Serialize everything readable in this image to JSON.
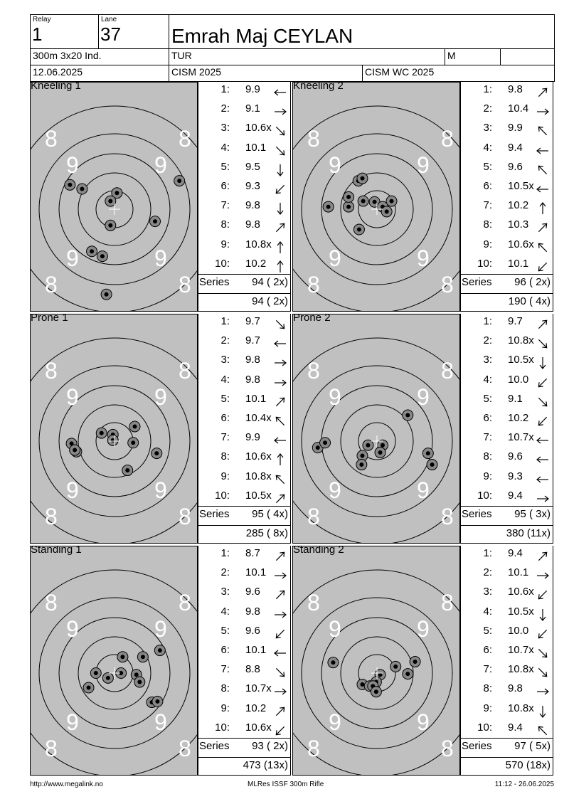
{
  "header": {
    "relay_label": "Relay",
    "relay": "1",
    "lane_label": "Lane",
    "lane": "37",
    "name": "Emrah Maj CEYLAN",
    "event": "300m 3x20 Ind.",
    "nation": "TUR",
    "gender": "M",
    "date": "12.06.2025",
    "competition": "CISM 2025",
    "match": "CISM WC 2025"
  },
  "series_label": "Series",
  "ring_label_8": "8",
  "ring_label_9": "9",
  "series": [
    {
      "title": "Kneeling 1",
      "shots": [
        {
          "n": "1:",
          "v": "9.9",
          "dir": "w"
        },
        {
          "n": "2:",
          "v": "9.1",
          "dir": "e"
        },
        {
          "n": "3:",
          "v": "10.6x",
          "dir": "se"
        },
        {
          "n": "4:",
          "v": "10.1",
          "dir": "se"
        },
        {
          "n": "5:",
          "v": "9.5",
          "dir": "s"
        },
        {
          "n": "6:",
          "v": "9.3",
          "dir": "sw"
        },
        {
          "n": "7:",
          "v": "9.8",
          "dir": "s"
        },
        {
          "n": "8:",
          "v": "9.8",
          "dir": "ne"
        },
        {
          "n": "9:",
          "v": "10.8x",
          "dir": "n"
        },
        {
          "n": "10:",
          "v": "10.2",
          "dir": "n"
        }
      ],
      "series_total": "94 ( 2x)",
      "running_total": "94 ( 2x)",
      "impacts": [
        [
          -2,
          14.5
        ],
        [
          8,
          -3.5
        ],
        [
          -0.5,
          2
        ],
        [
          -4,
          -2.5
        ],
        [
          5,
          1.5
        ],
        [
          -5.5,
          -3
        ],
        [
          -1,
          10.5
        ],
        [
          0.3,
          -2
        ],
        [
          -0.5,
          -1
        ],
        [
          -2.8,
          5.2
        ],
        [
          -1.5,
          5.8
        ]
      ]
    },
    {
      "title": "Kneeling 2",
      "shots": [
        {
          "n": "1:",
          "v": "9.8",
          "dir": "ne"
        },
        {
          "n": "2:",
          "v": "10.4",
          "dir": "e"
        },
        {
          "n": "3:",
          "v": "9.9",
          "dir": "nw"
        },
        {
          "n": "4:",
          "v": "9.4",
          "dir": "w"
        },
        {
          "n": "5:",
          "v": "9.6",
          "dir": "nw"
        },
        {
          "n": "6:",
          "v": "10.5x",
          "dir": "w"
        },
        {
          "n": "7:",
          "v": "10.2",
          "dir": "n"
        },
        {
          "n": "8:",
          "v": "10.3",
          "dir": "ne"
        },
        {
          "n": "9:",
          "v": "10.6x",
          "dir": "nw"
        },
        {
          "n": "10:",
          "v": "10.1",
          "dir": "sw"
        }
      ],
      "series_total": "96 ( 2x)",
      "running_total": "190 ( 4x)",
      "impacts": [
        [
          -2.3,
          -3.5
        ],
        [
          -1.8,
          -3.8
        ],
        [
          -3.5,
          -0.3
        ],
        [
          -3.5,
          -1.5
        ],
        [
          -1.7,
          -1
        ],
        [
          -0.3,
          -0.9
        ],
        [
          0.7,
          -0.3
        ],
        [
          1.2,
          0.3
        ],
        [
          1.8,
          -1
        ],
        [
          -2.2,
          2.5
        ],
        [
          -6,
          -0.3
        ]
      ]
    },
    {
      "title": "Prone 1",
      "shots": [
        {
          "n": "1:",
          "v": "9.7",
          "dir": "se"
        },
        {
          "n": "2:",
          "v": "9.7",
          "dir": "w"
        },
        {
          "n": "3:",
          "v": "9.8",
          "dir": "e"
        },
        {
          "n": "4:",
          "v": "9.8",
          "dir": "e"
        },
        {
          "n": "5:",
          "v": "10.1",
          "dir": "ne"
        },
        {
          "n": "6:",
          "v": "10.4x",
          "dir": "nw"
        },
        {
          "n": "7:",
          "v": "9.9",
          "dir": "w"
        },
        {
          "n": "8:",
          "v": "10.6x",
          "dir": "n"
        },
        {
          "n": "9:",
          "v": "10.8x",
          "dir": "nw"
        },
        {
          "n": "10:",
          "v": "10.5x",
          "dir": "ne"
        }
      ],
      "series_total": "95 ( 4x)",
      "running_total": "285 ( 8x)",
      "impacts": [
        [
          -1.6,
          -1
        ],
        [
          -0.2,
          -0.8
        ],
        [
          -0.2,
          -0.1
        ],
        [
          2.5,
          -1.8
        ],
        [
          2.3,
          0.2
        ],
        [
          -5.3,
          0.3
        ],
        [
          -4.7,
          1.3
        ],
        [
          -4.9,
          1.1
        ],
        [
          5.2,
          1.5
        ],
        [
          1.6,
          3.6
        ]
      ]
    },
    {
      "title": "Prone 2",
      "shots": [
        {
          "n": "1:",
          "v": "9.7",
          "dir": "ne"
        },
        {
          "n": "2:",
          "v": "10.8x",
          "dir": "se"
        },
        {
          "n": "3:",
          "v": "10.5x",
          "dir": "s"
        },
        {
          "n": "4:",
          "v": "10.0",
          "dir": "sw"
        },
        {
          "n": "5:",
          "v": "9.1",
          "dir": "se"
        },
        {
          "n": "6:",
          "v": "10.2",
          "dir": "sw"
        },
        {
          "n": "7:",
          "v": "10.7x",
          "dir": "w"
        },
        {
          "n": "8:",
          "v": "9.6",
          "dir": "w"
        },
        {
          "n": "9:",
          "v": "9.3",
          "dir": "w"
        },
        {
          "n": "10:",
          "v": "9.4",
          "dir": "e"
        }
      ],
      "series_total": "95 ( 3x)",
      "running_total": "380 (11x)",
      "impacts": [
        [
          3.8,
          -3.2
        ],
        [
          -1.1,
          0.5
        ],
        [
          0.7,
          0.5
        ],
        [
          0.4,
          1.4
        ],
        [
          -1.8,
          1.8
        ],
        [
          -1.9,
          2.9
        ],
        [
          -7.3,
          0.8
        ],
        [
          -6.4,
          0.2
        ],
        [
          6.3,
          1.5
        ],
        [
          6.8,
          2.9
        ]
      ]
    },
    {
      "title": "Standing 1",
      "shots": [
        {
          "n": "1:",
          "v": "8.7",
          "dir": "ne"
        },
        {
          "n": "2:",
          "v": "10.1",
          "dir": "e"
        },
        {
          "n": "3:",
          "v": "9.6",
          "dir": "ne"
        },
        {
          "n": "4:",
          "v": "9.8",
          "dir": "e"
        },
        {
          "n": "5:",
          "v": "9.6",
          "dir": "sw"
        },
        {
          "n": "6:",
          "v": "10.1",
          "dir": "w"
        },
        {
          "n": "7:",
          "v": "8.8",
          "dir": "se"
        },
        {
          "n": "8:",
          "v": "10.7x",
          "dir": "e"
        },
        {
          "n": "9:",
          "v": "10.2",
          "dir": "ne"
        },
        {
          "n": "10:",
          "v": "10.6x",
          "dir": "sw"
        }
      ],
      "series_total": "93 ( 2x)",
      "running_total": "473 (13x)",
      "impacts": [
        [
          1,
          -2
        ],
        [
          3.5,
          -2
        ],
        [
          5.6,
          -2.8
        ],
        [
          -2.3,
          0
        ],
        [
          0.8,
          0
        ],
        [
          2.7,
          0.2
        ],
        [
          3.1,
          1.1
        ],
        [
          -0.8,
          0.6
        ],
        [
          -3.2,
          1.8
        ],
        [
          4.6,
          3.6
        ],
        [
          5.3,
          3.5
        ]
      ]
    },
    {
      "title": "Standing 2",
      "shots": [
        {
          "n": "1:",
          "v": "9.4",
          "dir": "ne"
        },
        {
          "n": "2:",
          "v": "10.1",
          "dir": "e"
        },
        {
          "n": "3:",
          "v": "10.6x",
          "dir": "sw"
        },
        {
          "n": "4:",
          "v": "10.5x",
          "dir": "s"
        },
        {
          "n": "5:",
          "v": "10.0",
          "dir": "sw"
        },
        {
          "n": "6:",
          "v": "10.7x",
          "dir": "se"
        },
        {
          "n": "7:",
          "v": "10.8x",
          "dir": "se"
        },
        {
          "n": "8:",
          "v": "9.8",
          "dir": "e"
        },
        {
          "n": "9:",
          "v": "10.8x",
          "dir": "s"
        },
        {
          "n": "10:",
          "v": "9.4",
          "dir": "nw"
        }
      ],
      "series_total": "97 ( 5x)",
      "running_total": "570 (18x)",
      "impacts": [
        [
          -5.4,
          -1.3
        ],
        [
          4.7,
          -1.4
        ],
        [
          2.3,
          -0.8
        ],
        [
          3.8,
          0.1
        ],
        [
          -1.8,
          1.4
        ],
        [
          -0.9,
          1.6
        ],
        [
          0.4,
          0.2
        ],
        [
          -0.1,
          1.1
        ],
        [
          -0.5,
          1.6
        ],
        [
          -0.1,
          2.3
        ]
      ]
    }
  ],
  "footer": {
    "left": "http://www.megalink.no",
    "center": "MLRes ISSF 300m Rifle",
    "right": "11:12 - 26.06.2025"
  }
}
